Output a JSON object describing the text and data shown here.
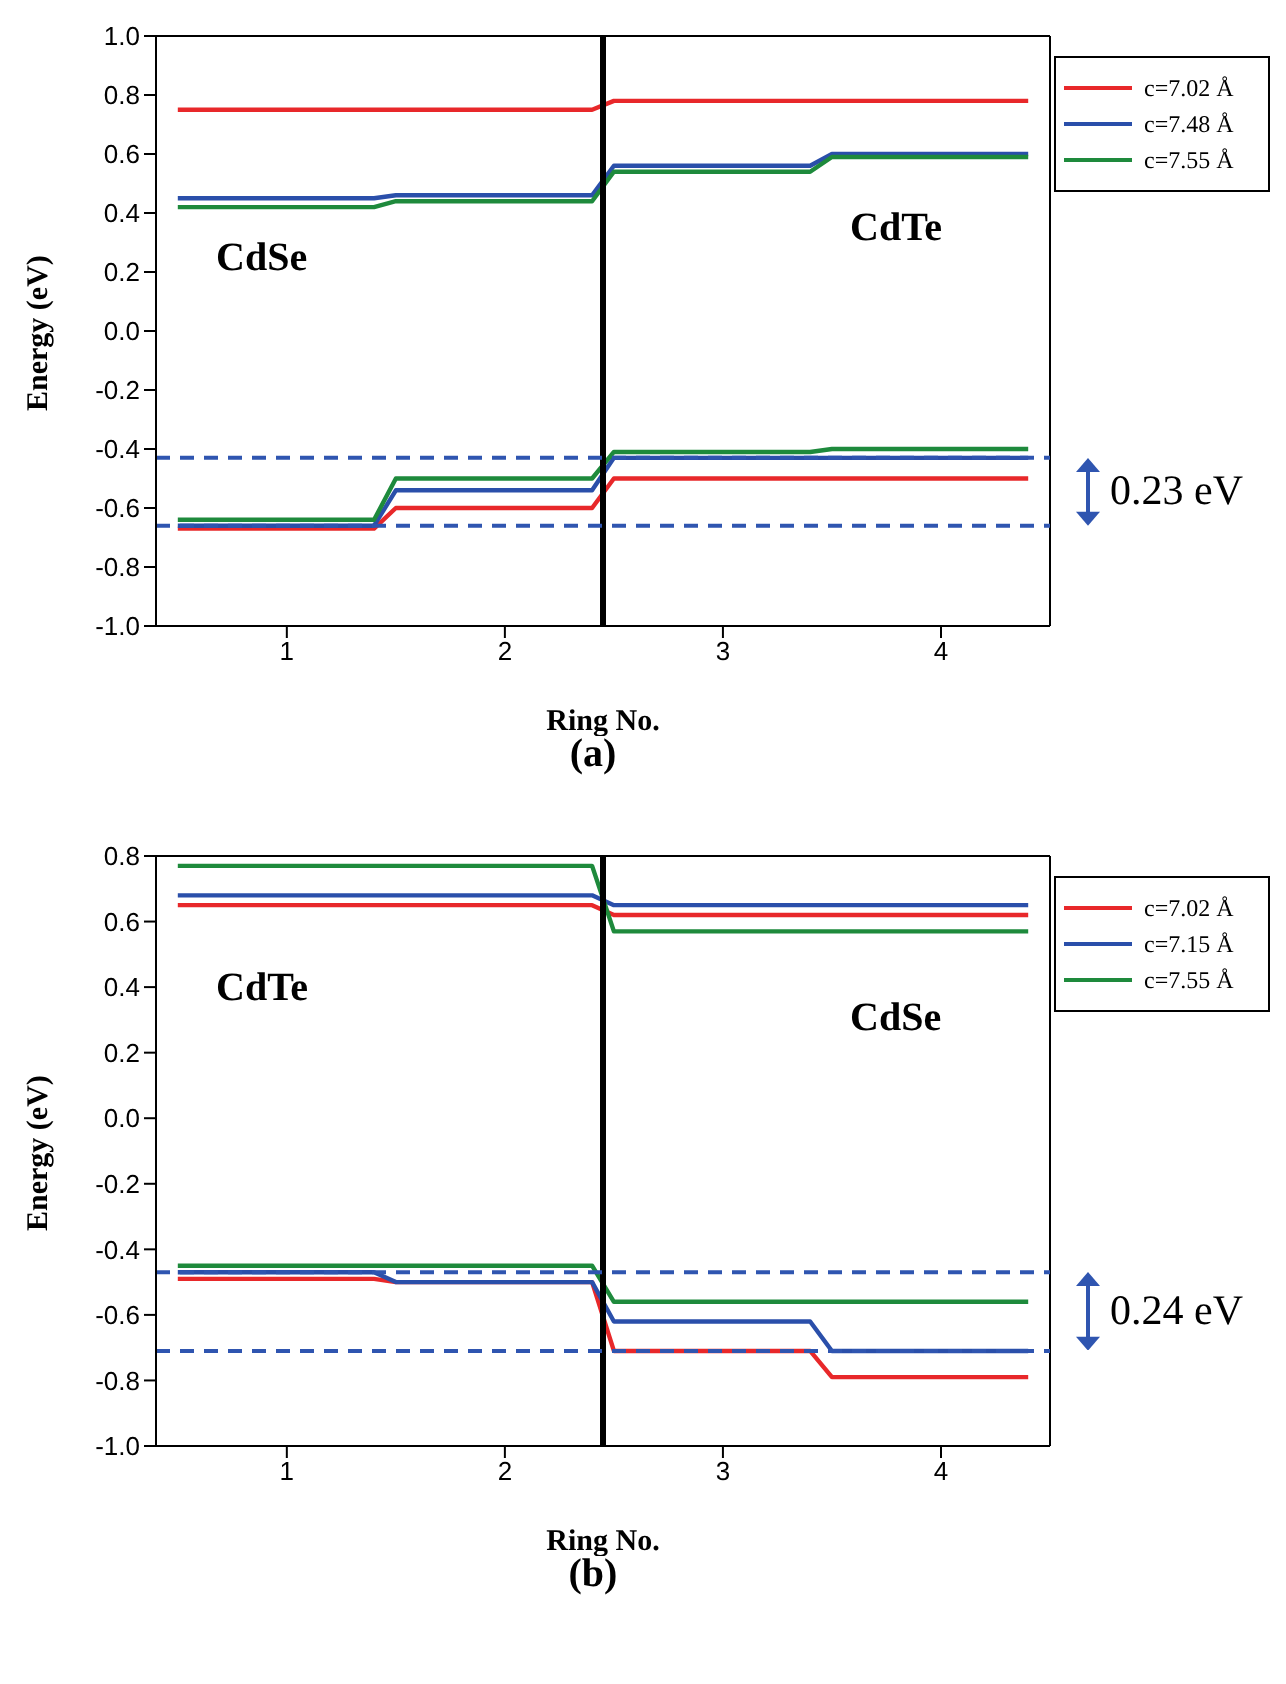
{
  "chart_data": [
    {
      "type": "line",
      "title": "(a)",
      "xlabel": "Ring No.",
      "ylabel": "Energy (eV)",
      "x": [
        0.5,
        1.4,
        1.5,
        2.4,
        2.5,
        3.4,
        3.5,
        4.4
      ],
      "series": [
        {
          "name": "c=7.02 Å",
          "color": "#e8282a",
          "values": [
            0.75,
            0.75,
            0.75,
            0.75,
            0.78,
            0.78,
            0.78,
            0.78
          ]
        },
        {
          "name": "c=7.48 Å",
          "color": "#2a4faa",
          "values": [
            0.45,
            0.45,
            0.46,
            0.46,
            0.56,
            0.56,
            0.6,
            0.6
          ]
        },
        {
          "name": "c=7.55 Å",
          "color": "#1e8a3c",
          "values": [
            0.42,
            0.42,
            0.44,
            0.44,
            0.54,
            0.54,
            0.59,
            0.59
          ]
        },
        {
          "color": "#e8282a",
          "values": [
            -0.67,
            -0.67,
            -0.6,
            -0.6,
            -0.5,
            -0.5,
            -0.5,
            -0.5
          ]
        },
        {
          "color": "#2a4faa",
          "values": [
            -0.66,
            -0.66,
            -0.54,
            -0.54,
            -0.43,
            -0.43,
            -0.43,
            -0.43
          ]
        },
        {
          "color": "#1e8a3c",
          "values": [
            -0.64,
            -0.64,
            -0.5,
            -0.5,
            -0.41,
            -0.41,
            -0.4,
            -0.4
          ]
        }
      ],
      "xlim": [
        0.4,
        4.5
      ],
      "xticks": [
        1,
        2,
        3,
        4
      ],
      "ylim": [
        -1,
        1
      ],
      "yticks": [
        {
          "value": -1,
          "label": "-1.0"
        },
        -0.8,
        -0.6,
        -0.4,
        -0.2,
        {
          "value": 0,
          "label": "0.0"
        },
        0.2,
        0.4,
        0.6,
        0.8,
        {
          "value": 1,
          "label": "1.0"
        }
      ],
      "ref_lines": [
        {
          "axis": "x",
          "value": 2.45,
          "color": "#000000",
          "line_style": "solid"
        },
        {
          "axis": "y",
          "value": -0.43,
          "color": "#2f55b0",
          "line_style": "dashed"
        },
        {
          "axis": "y",
          "value": -0.66,
          "color": "#2f55b0",
          "line_style": "dashed"
        }
      ],
      "annotations": [
        "CdSe",
        "CdTe",
        "0.23 eV"
      ],
      "legend": "top right",
      "grid": false,
      "marker": "none",
      "line_style": "solid"
    },
    {
      "type": "line",
      "title": "(b)",
      "xlabel": "Ring No.",
      "ylabel": "Energy (eV)",
      "x": [
        0.5,
        1.4,
        1.5,
        2.4,
        2.5,
        3.4,
        3.5,
        4.4
      ],
      "series": [
        {
          "name": "c=7.02 Å",
          "color": "#e8282a",
          "values": [
            0.65,
            0.65,
            0.65,
            0.65,
            0.62,
            0.62,
            0.62,
            0.62
          ]
        },
        {
          "name": "c=7.15 Å",
          "color": "#2a4faa",
          "values": [
            0.68,
            0.68,
            0.68,
            0.68,
            0.65,
            0.65,
            0.65,
            0.65
          ]
        },
        {
          "name": "c=7.55 Å",
          "color": "#1e8a3c",
          "values": [
            0.77,
            0.77,
            0.77,
            0.77,
            0.57,
            0.57,
            0.57,
            0.57
          ]
        },
        {
          "color": "#e8282a",
          "values": [
            -0.49,
            -0.49,
            -0.5,
            -0.5,
            -0.71,
            -0.71,
            -0.79,
            -0.79
          ]
        },
        {
          "color": "#2a4faa",
          "values": [
            -0.47,
            -0.47,
            -0.5,
            -0.5,
            -0.62,
            -0.62,
            -0.71,
            -0.71
          ]
        },
        {
          "color": "#1e8a3c",
          "values": [
            -0.45,
            -0.45,
            -0.45,
            -0.45,
            -0.56,
            -0.56,
            -0.56,
            -0.56
          ]
        }
      ],
      "xlim": [
        0.4,
        4.5
      ],
      "xticks": [
        1,
        2,
        3,
        4
      ],
      "ylim": [
        -1,
        0.8
      ],
      "yticks": [
        {
          "value": -1,
          "label": "-1.0"
        },
        -0.8,
        -0.6,
        -0.4,
        -0.2,
        {
          "value": 0,
          "label": "0.0"
        },
        0.2,
        0.4,
        0.6,
        0.8
      ],
      "ref_lines": [
        {
          "axis": "x",
          "value": 2.45,
          "color": "#000000",
          "line_style": "solid"
        },
        {
          "axis": "y",
          "value": -0.47,
          "color": "#2f55b0",
          "line_style": "dashed"
        },
        {
          "axis": "y",
          "value": -0.71,
          "color": "#2f55b0",
          "line_style": "dashed"
        }
      ],
      "annotations": [
        "CdTe",
        "CdSe",
        "0.24 eV"
      ],
      "legend": "top right",
      "grid": false,
      "marker": "none",
      "line_style": "solid"
    }
  ]
}
